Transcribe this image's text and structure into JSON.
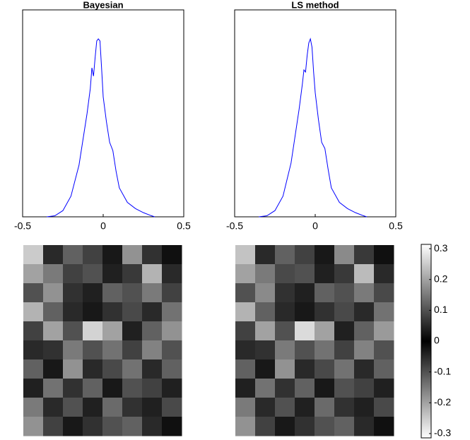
{
  "chart_data": [
    {
      "type": "line",
      "title": "Bayesian",
      "xlim": [
        -0.5,
        0.5
      ],
      "ylim": [
        0,
        1
      ],
      "xticks": [
        -0.5,
        0,
        0.5
      ],
      "color": "#0000ff",
      "x": [
        -0.35,
        -0.3,
        -0.25,
        -0.2,
        -0.15,
        -0.1,
        -0.08,
        -0.07,
        -0.06,
        -0.05,
        -0.04,
        -0.03,
        -0.02,
        -0.01,
        0,
        0.02,
        0.04,
        0.06,
        0.08,
        0.1,
        0.15,
        0.2,
        0.25,
        0.3,
        0.32
      ],
      "values": [
        0,
        0.005,
        0.03,
        0.1,
        0.25,
        0.5,
        0.62,
        0.72,
        0.68,
        0.77,
        0.85,
        0.86,
        0.85,
        0.72,
        0.58,
        0.46,
        0.36,
        0.32,
        0.22,
        0.14,
        0.07,
        0.04,
        0.02,
        0.005,
        0
      ]
    },
    {
      "type": "line",
      "title": "LS method",
      "xlim": [
        -0.5,
        0.5
      ],
      "ylim": [
        0,
        1
      ],
      "xticks": [
        -0.5,
        0,
        0.5
      ],
      "color": "#0000ff",
      "x": [
        -0.35,
        -0.3,
        -0.25,
        -0.2,
        -0.15,
        -0.1,
        -0.08,
        -0.07,
        -0.06,
        -0.05,
        -0.04,
        -0.03,
        -0.02,
        -0.01,
        0,
        0.02,
        0.04,
        0.06,
        0.08,
        0.1,
        0.15,
        0.2,
        0.25,
        0.3,
        0.32
      ],
      "values": [
        0,
        0.005,
        0.03,
        0.1,
        0.26,
        0.52,
        0.64,
        0.71,
        0.7,
        0.78,
        0.84,
        0.86,
        0.82,
        0.7,
        0.6,
        0.47,
        0.36,
        0.33,
        0.23,
        0.14,
        0.07,
        0.04,
        0.02,
        0.005,
        0
      ]
    },
    {
      "type": "heatmap",
      "clim": [
        -0.314,
        0.314
      ],
      "values": [
        [
          0.25,
          0.05,
          0.12,
          -0.08,
          0.03,
          0.18,
          0.06,
          0.02
        ],
        [
          0.2,
          -0.15,
          0.08,
          0.1,
          -0.04,
          0.07,
          0.22,
          0.05
        ],
        [
          0.1,
          0.18,
          -0.06,
          0.04,
          0.12,
          -0.1,
          0.15,
          0.08
        ],
        [
          0.22,
          0.12,
          0.05,
          -0.03,
          0.06,
          0.09,
          -0.05,
          0.14
        ],
        [
          0.08,
          0.2,
          0.1,
          0.26,
          0.2,
          0.04,
          0.12,
          0.18
        ],
        [
          0.05,
          0.06,
          0.15,
          0.1,
          -0.14,
          0.08,
          0.16,
          0.1
        ],
        [
          0.12,
          0.03,
          -0.18,
          0.05,
          0.09,
          0.14,
          0.05,
          0.12
        ],
        [
          0.04,
          0.14,
          0.06,
          0.12,
          0.03,
          0.1,
          0.08,
          0.04
        ],
        [
          0.15,
          0.05,
          0.1,
          -0.04,
          0.13,
          0.06,
          0.04,
          0.09
        ],
        [
          0.18,
          0.08,
          0.03,
          0.06,
          0.1,
          0.12,
          0.05,
          0.02
        ]
      ]
    },
    {
      "type": "heatmap",
      "clim": [
        -0.314,
        0.314
      ],
      "values": [
        [
          0.24,
          0.05,
          0.12,
          -0.08,
          0.03,
          0.17,
          0.07,
          0.02
        ],
        [
          0.2,
          -0.15,
          0.09,
          0.1,
          -0.04,
          0.07,
          0.23,
          0.05
        ],
        [
          0.1,
          0.17,
          -0.06,
          0.04,
          0.12,
          -0.1,
          0.15,
          0.09
        ],
        [
          0.22,
          0.12,
          0.05,
          -0.03,
          0.06,
          0.09,
          -0.05,
          0.14
        ],
        [
          0.08,
          0.2,
          0.1,
          0.27,
          0.2,
          0.04,
          0.12,
          0.19
        ],
        [
          0.05,
          0.06,
          0.15,
          0.1,
          -0.14,
          0.08,
          0.16,
          0.1
        ],
        [
          0.12,
          0.03,
          -0.18,
          0.05,
          0.09,
          0.14,
          0.05,
          0.12
        ],
        [
          0.04,
          0.14,
          0.06,
          0.12,
          0.03,
          0.1,
          0.08,
          0.04
        ],
        [
          0.15,
          0.05,
          0.1,
          -0.04,
          0.13,
          0.06,
          0.04,
          0.09
        ],
        [
          0.18,
          0.08,
          0.03,
          0.06,
          0.1,
          0.12,
          0.05,
          0.02
        ]
      ]
    },
    {
      "type": "colorbar",
      "ylim": [
        -0.314,
        0.314
      ],
      "yticks": [
        0.3,
        0.2,
        0.1,
        0,
        -0.1,
        -0.2,
        -0.3
      ]
    }
  ]
}
